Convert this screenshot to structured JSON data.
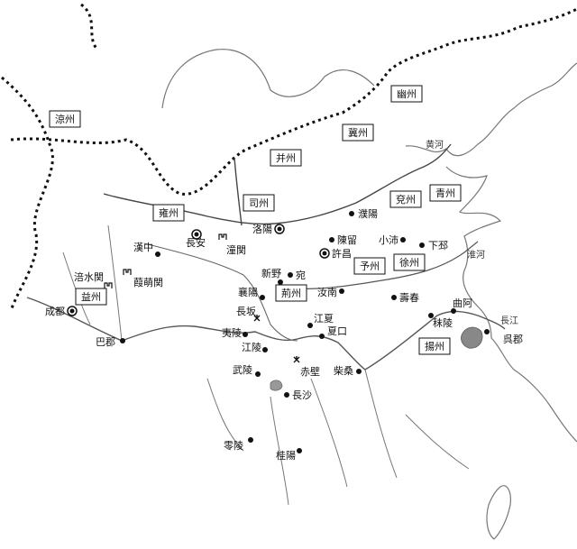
{
  "provinces": [
    {
      "label": "涼州"
    },
    {
      "label": "幽州"
    },
    {
      "label": "冀州"
    },
    {
      "label": "并州"
    },
    {
      "label": "司州"
    },
    {
      "label": "雍州"
    },
    {
      "label": "兗州"
    },
    {
      "label": "青州"
    },
    {
      "label": "予州"
    },
    {
      "label": "徐州"
    },
    {
      "label": "益州"
    },
    {
      "label": "荊州"
    },
    {
      "label": "揚州"
    }
  ],
  "cities": [
    {
      "label": "長安",
      "capital": true
    },
    {
      "label": "洛陽",
      "capital": true
    },
    {
      "label": "許昌",
      "capital": true
    },
    {
      "label": "成都",
      "capital": true
    },
    {
      "label": "濮陽"
    },
    {
      "label": "陳留"
    },
    {
      "label": "小沛"
    },
    {
      "label": "下邳"
    },
    {
      "label": "漢中"
    },
    {
      "label": "新野"
    },
    {
      "label": "宛"
    },
    {
      "label": "汝南"
    },
    {
      "label": "壽春"
    },
    {
      "label": "襄陽"
    },
    {
      "label": "江夏"
    },
    {
      "label": "夏口"
    },
    {
      "label": "夷陵"
    },
    {
      "label": "江陵"
    },
    {
      "label": "武陵"
    },
    {
      "label": "長沙"
    },
    {
      "label": "柴桑"
    },
    {
      "label": "巴郡"
    },
    {
      "label": "曲阿"
    },
    {
      "label": "秣陵"
    },
    {
      "label": "呉郡"
    },
    {
      "label": "零陵"
    },
    {
      "label": "桂陽"
    }
  ],
  "passes": [
    {
      "label": "潼関"
    },
    {
      "label": "涪水関"
    },
    {
      "label": "葭萌関"
    }
  ],
  "battles": [
    {
      "label": "長坂"
    },
    {
      "label": "赤壁"
    }
  ],
  "rivers": [
    {
      "label": "黄河"
    },
    {
      "label": "淮河"
    },
    {
      "label": "長江"
    }
  ]
}
